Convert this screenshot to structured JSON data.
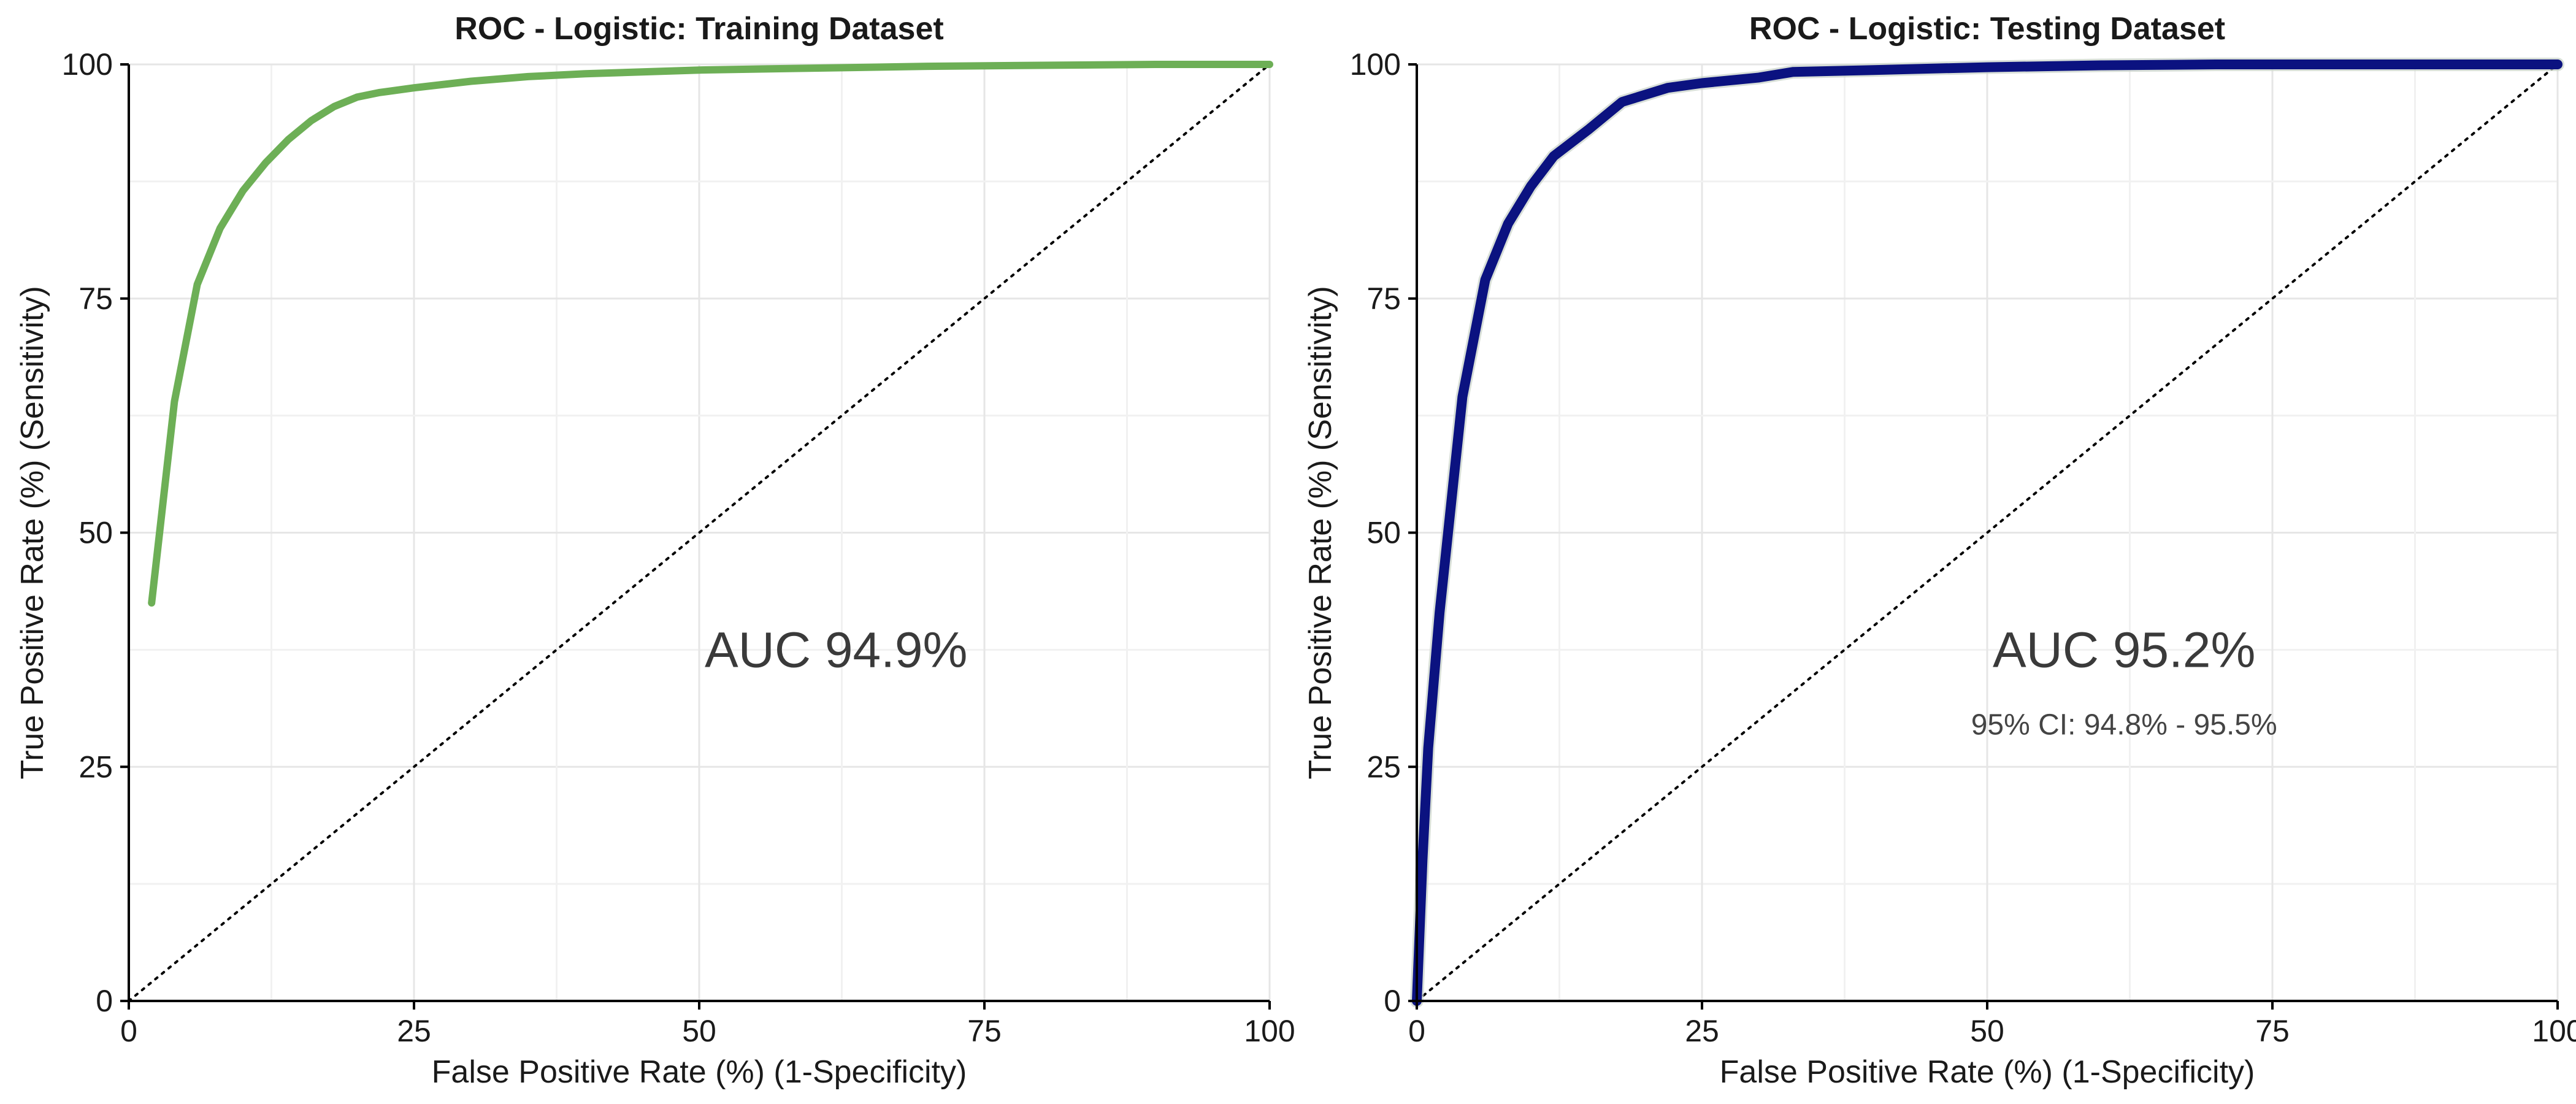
{
  "chart_data": [
    {
      "type": "line",
      "title": "ROC - Logistic: Training Dataset",
      "xlabel": "False Positive Rate (%)    (1-Specificity)",
      "ylabel": "True Positive Rate (%)    (Sensitivity)",
      "xlim": [
        0,
        100
      ],
      "ylim": [
        0,
        100
      ],
      "xticks": [
        "0",
        "25",
        "50",
        "75",
        "100"
      ],
      "yticks": [
        "0",
        "25",
        "50",
        "75",
        "100"
      ],
      "grid": true,
      "annotation": "AUC 94.9%",
      "annotation_sub": "",
      "reference_line": true,
      "series": [
        {
          "color": "#6daf56",
          "points": [
            [
              2,
              42.5
            ],
            [
              4,
              64
            ],
            [
              6,
              76.5
            ],
            [
              8,
              82.5
            ],
            [
              10,
              86.5
            ],
            [
              12,
              89.5
            ],
            [
              14,
              92
            ],
            [
              16,
              94
            ],
            [
              18,
              95.5
            ],
            [
              20,
              96.5
            ],
            [
              22,
              97
            ],
            [
              25,
              97.5
            ],
            [
              30,
              98.2
            ],
            [
              35,
              98.7
            ],
            [
              40,
              99
            ],
            [
              50,
              99.4
            ],
            [
              60,
              99.6
            ],
            [
              70,
              99.8
            ],
            [
              80,
              99.9
            ],
            [
              90,
              100
            ],
            [
              100,
              100
            ]
          ]
        }
      ]
    },
    {
      "type": "line",
      "title": "ROC - Logistic: Testing Dataset",
      "xlabel": "False Positive Rate (%)    (1-Specificity)",
      "ylabel": "True Positive Rate (%)    (Sensitivity)",
      "xlim": [
        0,
        100
      ],
      "ylim": [
        0,
        100
      ],
      "xticks": [
        "0",
        "25",
        "50",
        "75",
        "100"
      ],
      "yticks": [
        "0",
        "25",
        "50",
        "75",
        "100"
      ],
      "grid": true,
      "annotation": "AUC 95.2%",
      "annotation_sub": "95% CI: 94.8% - 95.5%",
      "reference_line": true,
      "series": [
        {
          "color": "#0b1280",
          "points": [
            [
              0,
              0
            ],
            [
              0.5,
              15
            ],
            [
              1,
              27
            ],
            [
              2,
              41.5
            ],
            [
              4,
              64.5
            ],
            [
              6,
              77
            ],
            [
              8,
              83
            ],
            [
              10,
              87
            ],
            [
              12,
              90.2
            ],
            [
              15,
              93
            ],
            [
              18,
              96
            ],
            [
              22,
              97.5
            ],
            [
              25,
              98
            ],
            [
              30,
              98.6
            ],
            [
              33,
              99.2
            ],
            [
              40,
              99.4
            ],
            [
              50,
              99.7
            ],
            [
              60,
              99.9
            ],
            [
              70,
              100
            ],
            [
              100,
              100
            ]
          ]
        }
      ]
    }
  ]
}
